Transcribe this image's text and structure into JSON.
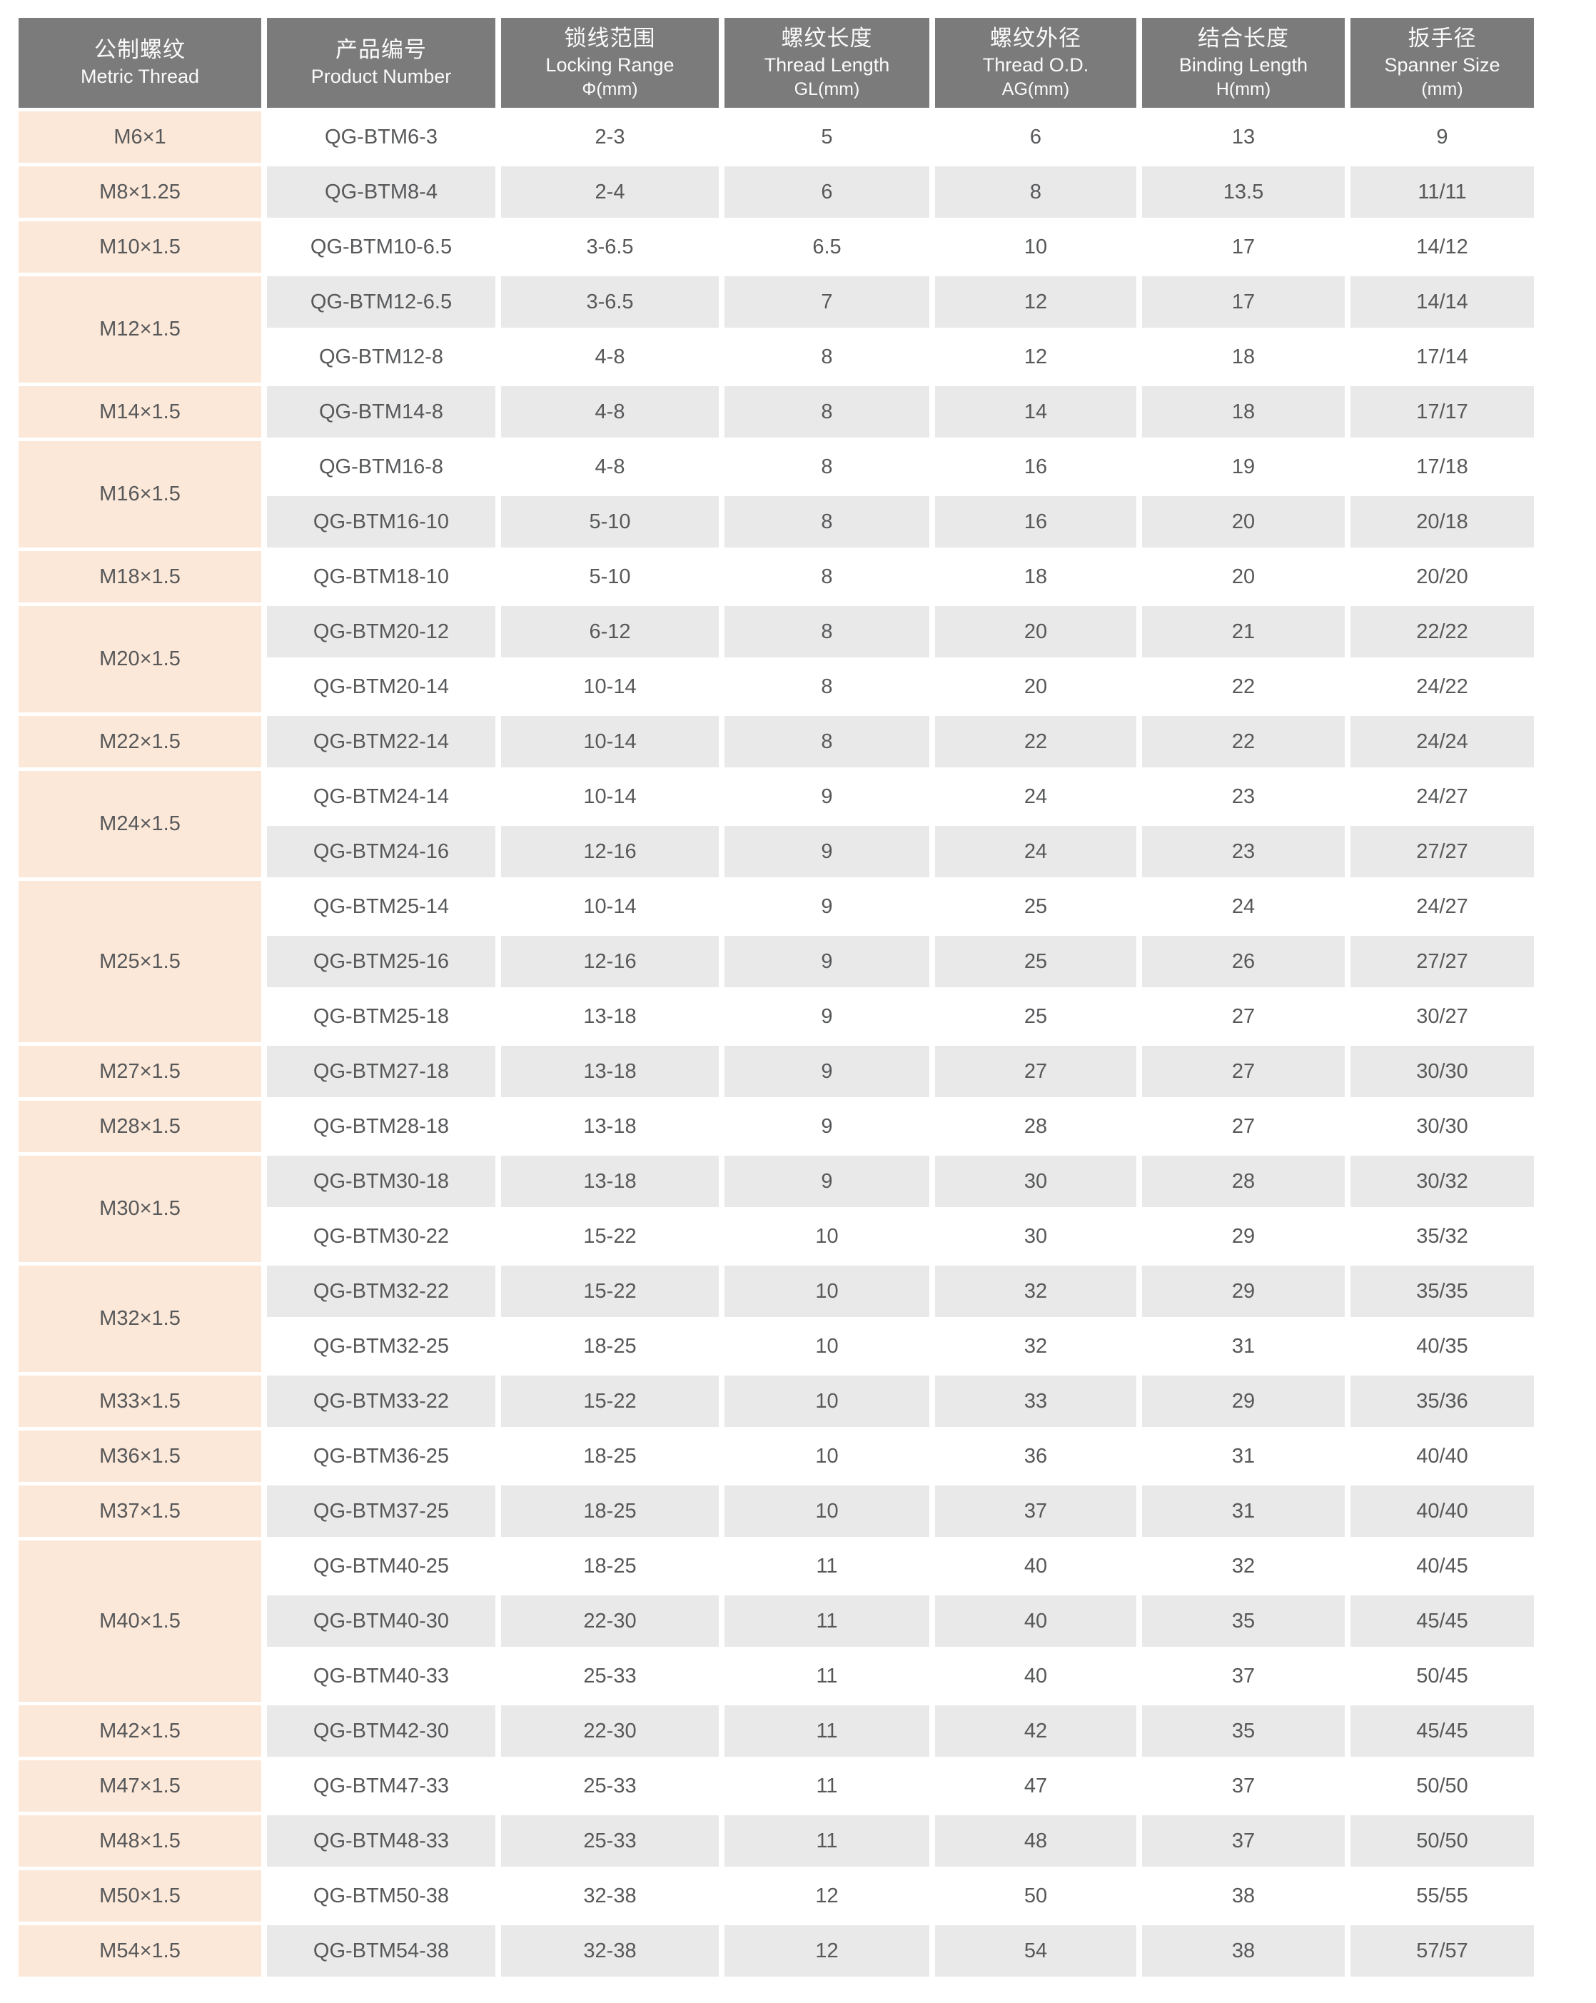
{
  "table": {
    "colors": {
      "header_bg": "#7b7b7b",
      "header_text": "#fafafa",
      "thread_column_bg": "#fce8d8",
      "row_light": "#ffffff",
      "row_dark": "#e9e9e9",
      "cell_text": "#57585a",
      "page_bg": "#ffffff"
    },
    "columns": [
      {
        "id": "metric-thread",
        "zh": "公制螺纹",
        "en": "Metric Thread",
        "unit": ""
      },
      {
        "id": "product-number",
        "zh": "产品编号",
        "en": "Product Number",
        "unit": ""
      },
      {
        "id": "locking-range",
        "zh": "锁线范围",
        "en": "Locking Range",
        "unit": "Φ(mm)"
      },
      {
        "id": "thread-length",
        "zh": "螺纹长度",
        "en": "Thread Length",
        "unit": "GL(mm)"
      },
      {
        "id": "thread-od",
        "zh": "螺纹外径",
        "en": "Thread O.D.",
        "unit": "AG(mm)"
      },
      {
        "id": "binding-length",
        "zh": "结合长度",
        "en": "Binding Length",
        "unit": "H(mm)"
      },
      {
        "id": "spanner-size",
        "zh": "扳手径",
        "en": "Spanner Size",
        "unit": "(mm)"
      }
    ],
    "groups": [
      {
        "thread": "M6×1",
        "rows": [
          {
            "product": "QG-BTM6-3",
            "locking": "2-3",
            "gl": "5",
            "ag": "6",
            "h": "13",
            "spanner": "9"
          }
        ]
      },
      {
        "thread": "M8×1.25",
        "rows": [
          {
            "product": "QG-BTM8-4",
            "locking": "2-4",
            "gl": "6",
            "ag": "8",
            "h": "13.5",
            "spanner": "11/11"
          }
        ]
      },
      {
        "thread": "M10×1.5",
        "rows": [
          {
            "product": "QG-BTM10-6.5",
            "locking": "3-6.5",
            "gl": "6.5",
            "ag": "10",
            "h": "17",
            "spanner": "14/12"
          }
        ]
      },
      {
        "thread": "M12×1.5",
        "rows": [
          {
            "product": "QG-BTM12-6.5",
            "locking": "3-6.5",
            "gl": "7",
            "ag": "12",
            "h": "17",
            "spanner": "14/14"
          },
          {
            "product": "QG-BTM12-8",
            "locking": "4-8",
            "gl": "8",
            "ag": "12",
            "h": "18",
            "spanner": "17/14"
          }
        ]
      },
      {
        "thread": "M14×1.5",
        "rows": [
          {
            "product": "QG-BTM14-8",
            "locking": "4-8",
            "gl": "8",
            "ag": "14",
            "h": "18",
            "spanner": "17/17"
          }
        ]
      },
      {
        "thread": "M16×1.5",
        "rows": [
          {
            "product": "QG-BTM16-8",
            "locking": "4-8",
            "gl": "8",
            "ag": "16",
            "h": "19",
            "spanner": "17/18"
          },
          {
            "product": "QG-BTM16-10",
            "locking": "5-10",
            "gl": "8",
            "ag": "16",
            "h": "20",
            "spanner": "20/18"
          }
        ]
      },
      {
        "thread": "M18×1.5",
        "rows": [
          {
            "product": "QG-BTM18-10",
            "locking": "5-10",
            "gl": "8",
            "ag": "18",
            "h": "20",
            "spanner": "20/20"
          }
        ]
      },
      {
        "thread": "M20×1.5",
        "rows": [
          {
            "product": "QG-BTM20-12",
            "locking": "6-12",
            "gl": "8",
            "ag": "20",
            "h": "21",
            "spanner": "22/22"
          },
          {
            "product": "QG-BTM20-14",
            "locking": "10-14",
            "gl": "8",
            "ag": "20",
            "h": "22",
            "spanner": "24/22"
          }
        ]
      },
      {
        "thread": "M22×1.5",
        "rows": [
          {
            "product": "QG-BTM22-14",
            "locking": "10-14",
            "gl": "8",
            "ag": "22",
            "h": "22",
            "spanner": "24/24"
          }
        ]
      },
      {
        "thread": "M24×1.5",
        "rows": [
          {
            "product": "QG-BTM24-14",
            "locking": "10-14",
            "gl": "9",
            "ag": "24",
            "h": "23",
            "spanner": "24/27"
          },
          {
            "product": "QG-BTM24-16",
            "locking": "12-16",
            "gl": "9",
            "ag": "24",
            "h": "23",
            "spanner": "27/27"
          }
        ]
      },
      {
        "thread": "M25×1.5",
        "rows": [
          {
            "product": "QG-BTM25-14",
            "locking": "10-14",
            "gl": "9",
            "ag": "25",
            "h": "24",
            "spanner": "24/27"
          },
          {
            "product": "QG-BTM25-16",
            "locking": "12-16",
            "gl": "9",
            "ag": "25",
            "h": "26",
            "spanner": "27/27"
          },
          {
            "product": "QG-BTM25-18",
            "locking": "13-18",
            "gl": "9",
            "ag": "25",
            "h": "27",
            "spanner": "30/27"
          }
        ]
      },
      {
        "thread": "M27×1.5",
        "rows": [
          {
            "product": "QG-BTM27-18",
            "locking": "13-18",
            "gl": "9",
            "ag": "27",
            "h": "27",
            "spanner": "30/30"
          }
        ]
      },
      {
        "thread": "M28×1.5",
        "rows": [
          {
            "product": "QG-BTM28-18",
            "locking": "13-18",
            "gl": "9",
            "ag": "28",
            "h": "27",
            "spanner": "30/30"
          }
        ]
      },
      {
        "thread": "M30×1.5",
        "rows": [
          {
            "product": "QG-BTM30-18",
            "locking": "13-18",
            "gl": "9",
            "ag": "30",
            "h": "28",
            "spanner": "30/32"
          },
          {
            "product": "QG-BTM30-22",
            "locking": "15-22",
            "gl": "10",
            "ag": "30",
            "h": "29",
            "spanner": "35/32"
          }
        ]
      },
      {
        "thread": "M32×1.5",
        "rows": [
          {
            "product": "QG-BTM32-22",
            "locking": "15-22",
            "gl": "10",
            "ag": "32",
            "h": "29",
            "spanner": "35/35"
          },
          {
            "product": "QG-BTM32-25",
            "locking": "18-25",
            "gl": "10",
            "ag": "32",
            "h": "31",
            "spanner": "40/35"
          }
        ]
      },
      {
        "thread": "M33×1.5",
        "rows": [
          {
            "product": "QG-BTM33-22",
            "locking": "15-22",
            "gl": "10",
            "ag": "33",
            "h": "29",
            "spanner": "35/36"
          }
        ]
      },
      {
        "thread": "M36×1.5",
        "rows": [
          {
            "product": "QG-BTM36-25",
            "locking": "18-25",
            "gl": "10",
            "ag": "36",
            "h": "31",
            "spanner": "40/40"
          }
        ]
      },
      {
        "thread": "M37×1.5",
        "rows": [
          {
            "product": "QG-BTM37-25",
            "locking": "18-25",
            "gl": "10",
            "ag": "37",
            "h": "31",
            "spanner": "40/40"
          }
        ]
      },
      {
        "thread": "M40×1.5",
        "rows": [
          {
            "product": "QG-BTM40-25",
            "locking": "18-25",
            "gl": "11",
            "ag": "40",
            "h": "32",
            "spanner": "40/45"
          },
          {
            "product": "QG-BTM40-30",
            "locking": "22-30",
            "gl": "11",
            "ag": "40",
            "h": "35",
            "spanner": "45/45"
          },
          {
            "product": "QG-BTM40-33",
            "locking": "25-33",
            "gl": "11",
            "ag": "40",
            "h": "37",
            "spanner": "50/45"
          }
        ]
      },
      {
        "thread": "M42×1.5",
        "rows": [
          {
            "product": "QG-BTM42-30",
            "locking": "22-30",
            "gl": "11",
            "ag": "42",
            "h": "35",
            "spanner": "45/45"
          }
        ]
      },
      {
        "thread": "M47×1.5",
        "rows": [
          {
            "product": "QG-BTM47-33",
            "locking": "25-33",
            "gl": "11",
            "ag": "47",
            "h": "37",
            "spanner": "50/50"
          }
        ]
      },
      {
        "thread": "M48×1.5",
        "rows": [
          {
            "product": "QG-BTM48-33",
            "locking": "25-33",
            "gl": "11",
            "ag": "48",
            "h": "37",
            "spanner": "50/50"
          }
        ]
      },
      {
        "thread": "M50×1.5",
        "rows": [
          {
            "product": "QG-BTM50-38",
            "locking": "32-38",
            "gl": "12",
            "ag": "50",
            "h": "38",
            "spanner": "55/55"
          }
        ]
      },
      {
        "thread": "M54×1.5",
        "rows": [
          {
            "product": "QG-BTM54-38",
            "locking": "32-38",
            "gl": "12",
            "ag": "54",
            "h": "38",
            "spanner": "57/57"
          }
        ]
      }
    ]
  }
}
